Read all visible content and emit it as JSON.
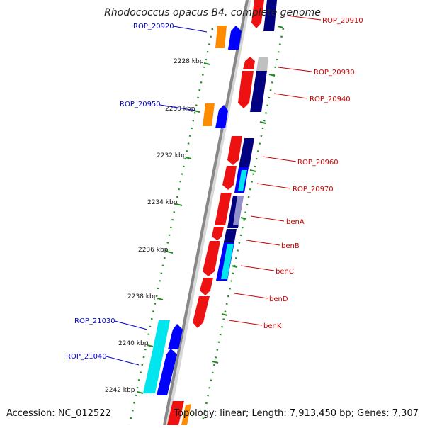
{
  "title": "Rhodococcus opacus B4, complete genome",
  "footer": {
    "accession": "Accession: NC_012522",
    "summary": "Topology: linear; Length: 7,913,450 bp; Genes: 7,307"
  },
  "colors": {
    "left_label": "#0000cc",
    "right_label": "#cc0000",
    "tick": "#228b22",
    "backbone": "#888888"
  },
  "kbp_ticks": [
    {
      "label": "2228 kbp"
    },
    {
      "label": "2230 kbp"
    },
    {
      "label": "2232 kbp"
    },
    {
      "label": "2234 kbp"
    },
    {
      "label": "2236 kbp"
    },
    {
      "label": "2238 kbp"
    },
    {
      "label": "2240 kbp"
    },
    {
      "label": "2242 kbp"
    }
  ],
  "genes_left": [
    {
      "name": "ROP_20920"
    },
    {
      "name": "ROP_20950"
    },
    {
      "name": "ROP_21030"
    },
    {
      "name": "ROP_21040"
    }
  ],
  "genes_right": [
    {
      "name": "ROP_20910"
    },
    {
      "name": "ROP_20930"
    },
    {
      "name": "ROP_20940"
    },
    {
      "name": "ROP_20960"
    },
    {
      "name": "ROP_20970"
    },
    {
      "name": "benA"
    },
    {
      "name": "benB"
    },
    {
      "name": "benC"
    },
    {
      "name": "benD"
    },
    {
      "name": "benK"
    }
  ]
}
